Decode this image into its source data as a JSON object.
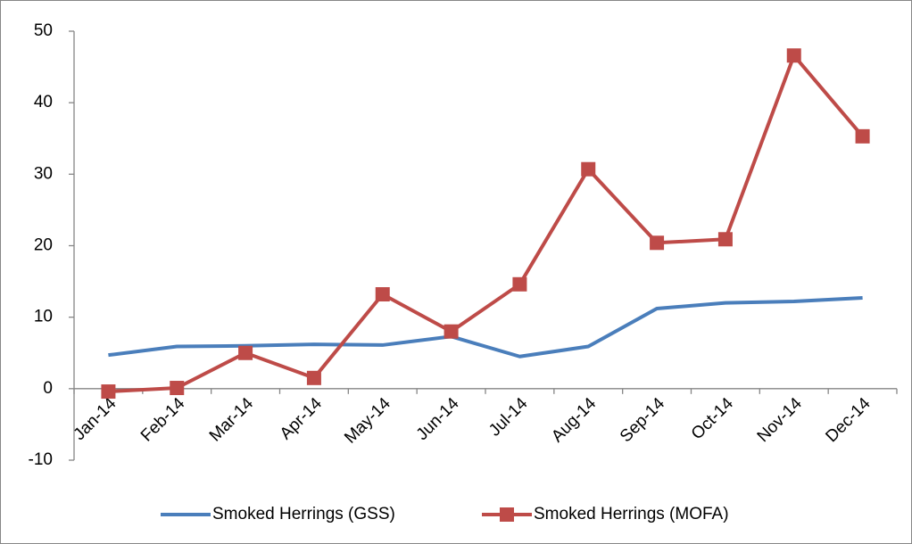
{
  "chart_data": {
    "type": "line",
    "categories": [
      "Jan-14",
      "Feb-14",
      "Mar-14",
      "Apr-14",
      "May-14",
      "Jun-14",
      "Jul-14",
      "Aug-14",
      "Sep-14",
      "Oct-14",
      "Nov-14",
      "Dec-14"
    ],
    "series": [
      {
        "name": "Smoked Herrings (GSS)",
        "color": "#4a7ebb",
        "values": [
          4.7,
          5.9,
          6.0,
          6.2,
          6.1,
          7.3,
          4.5,
          5.9,
          11.2,
          12.0,
          12.2,
          12.7
        ]
      },
      {
        "name": "Smoked Herrings (MOFA)",
        "color": "#be4b48",
        "marker": "square",
        "values": [
          -0.4,
          0.1,
          5.0,
          1.5,
          13.2,
          8.0,
          14.6,
          30.7,
          20.4,
          20.9,
          46.6,
          35.3
        ]
      }
    ],
    "ylim": [
      -10,
      50
    ],
    "yticks": [
      -10,
      0,
      10,
      20,
      30,
      40,
      50
    ],
    "grid": false,
    "legend": "bottom"
  }
}
